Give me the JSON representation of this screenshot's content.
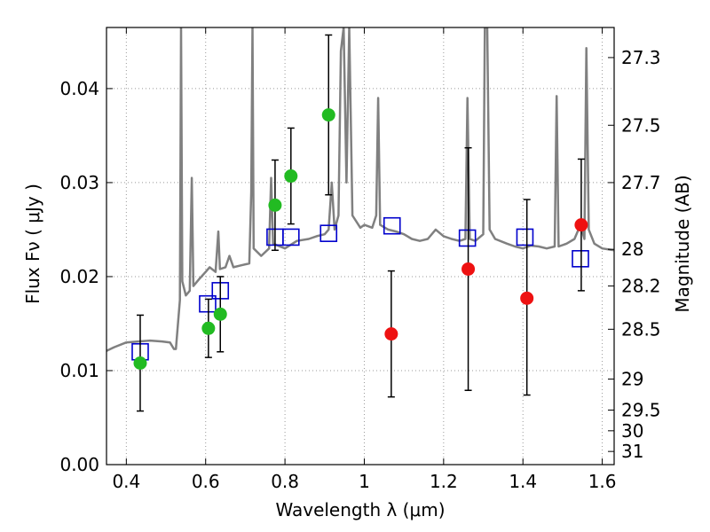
{
  "chart_data": {
    "type": "scatter",
    "xlabel": "Wavelength  λ (μm)",
    "ylabel": "Flux  Fν  ( μJy )",
    "y2label": "Magnitude (AB)",
    "xlim": [
      0.35,
      1.63
    ],
    "ylim": [
      0.0,
      0.0465
    ],
    "grid": true,
    "xticks": [
      0.4,
      0.6,
      0.8,
      1.0,
      1.2,
      1.4,
      1.6
    ],
    "xtick_labels": [
      "0.4",
      "0.6",
      "0.8",
      "1",
      "1.2",
      "1.4",
      "1.6"
    ],
    "yticks": [
      0.0,
      0.01,
      0.02,
      0.03,
      0.04
    ],
    "ytick_labels": [
      "0.00",
      "0.01",
      "0.02",
      "0.03",
      "0.04"
    ],
    "y2ticks": [
      {
        "label": "27.3",
        "flux": 0.0433
      },
      {
        "label": "27.5",
        "flux": 0.0361
      },
      {
        "label": "27.7",
        "flux": 0.03
      },
      {
        "label": "28",
        "flux": 0.0229
      },
      {
        "label": "28.2",
        "flux": 0.019
      },
      {
        "label": "28.5",
        "flux": 0.0144
      },
      {
        "label": "29",
        "flux": 0.0091
      },
      {
        "label": "29.5",
        "flux": 0.0058
      },
      {
        "label": "30",
        "flux": 0.0036
      },
      {
        "label": "31",
        "flux": 0.0014
      }
    ],
    "colors": {
      "spectrum": "#808080",
      "model": "#0000cc",
      "detected": "#22bb22",
      "upper": "#ee1111",
      "errorbar": "#000000",
      "grid": "#999999"
    },
    "series": [
      {
        "style": "line",
        "points": [
          [
            0.35,
            0.0121
          ],
          [
            0.37,
            0.0125
          ],
          [
            0.4,
            0.013
          ],
          [
            0.43,
            0.0131
          ],
          [
            0.46,
            0.0132
          ],
          [
            0.49,
            0.0131
          ],
          [
            0.51,
            0.013
          ],
          [
            0.52,
            0.0123
          ],
          [
            0.525,
            0.0123
          ],
          [
            0.535,
            0.0175
          ],
          [
            0.538,
            0.0465
          ],
          [
            0.541,
            0.0195
          ],
          [
            0.55,
            0.018
          ],
          [
            0.56,
            0.0185
          ],
          [
            0.565,
            0.0305
          ],
          [
            0.569,
            0.019
          ],
          [
            0.585,
            0.0198
          ],
          [
            0.6,
            0.0205
          ],
          [
            0.61,
            0.021
          ],
          [
            0.625,
            0.0205
          ],
          [
            0.632,
            0.0248
          ],
          [
            0.636,
            0.0208
          ],
          [
            0.65,
            0.021
          ],
          [
            0.66,
            0.0222
          ],
          [
            0.67,
            0.021
          ],
          [
            0.69,
            0.0212
          ],
          [
            0.71,
            0.0214
          ],
          [
            0.715,
            0.029
          ],
          [
            0.718,
            0.0465
          ],
          [
            0.721,
            0.023
          ],
          [
            0.74,
            0.0222
          ],
          [
            0.76,
            0.023
          ],
          [
            0.765,
            0.0305
          ],
          [
            0.77,
            0.0235
          ],
          [
            0.8,
            0.023
          ],
          [
            0.83,
            0.0238
          ],
          [
            0.86,
            0.024
          ],
          [
            0.88,
            0.0243
          ],
          [
            0.9,
            0.0245
          ],
          [
            0.91,
            0.025
          ],
          [
            0.918,
            0.03
          ],
          [
            0.925,
            0.025
          ],
          [
            0.935,
            0.0265
          ],
          [
            0.941,
            0.044
          ],
          [
            0.948,
            0.0465
          ],
          [
            0.955,
            0.03
          ],
          [
            0.962,
            0.0465
          ],
          [
            0.97,
            0.0265
          ],
          [
            0.99,
            0.0252
          ],
          [
            1.0,
            0.0255
          ],
          [
            1.02,
            0.0252
          ],
          [
            1.03,
            0.0265
          ],
          [
            1.035,
            0.039
          ],
          [
            1.04,
            0.0255
          ],
          [
            1.06,
            0.025
          ],
          [
            1.08,
            0.0248
          ],
          [
            1.1,
            0.0245
          ],
          [
            1.12,
            0.024
          ],
          [
            1.14,
            0.0238
          ],
          [
            1.16,
            0.024
          ],
          [
            1.18,
            0.025
          ],
          [
            1.2,
            0.0243
          ],
          [
            1.22,
            0.024
          ],
          [
            1.24,
            0.0238
          ],
          [
            1.255,
            0.024
          ],
          [
            1.26,
            0.039
          ],
          [
            1.266,
            0.024
          ],
          [
            1.28,
            0.0238
          ],
          [
            1.3,
            0.0245
          ],
          [
            1.304,
            0.0465
          ],
          [
            1.31,
            0.0465
          ],
          [
            1.316,
            0.025
          ],
          [
            1.33,
            0.024
          ],
          [
            1.36,
            0.0235
          ],
          [
            1.38,
            0.0232
          ],
          [
            1.4,
            0.023
          ],
          [
            1.42,
            0.0233
          ],
          [
            1.44,
            0.0232
          ],
          [
            1.46,
            0.023
          ],
          [
            1.48,
            0.0232
          ],
          [
            1.485,
            0.0392
          ],
          [
            1.49,
            0.0232
          ],
          [
            1.51,
            0.0235
          ],
          [
            1.53,
            0.024
          ],
          [
            1.545,
            0.0255
          ],
          [
            1.555,
            0.024
          ],
          [
            1.56,
            0.0443
          ],
          [
            1.566,
            0.025
          ],
          [
            1.58,
            0.0235
          ],
          [
            1.6,
            0.023
          ],
          [
            1.63,
            0.0228
          ]
        ]
      },
      {
        "style": "open-square",
        "x": [
          0.435,
          0.605,
          0.637,
          0.775,
          0.815,
          0.91,
          1.07,
          1.26,
          1.405,
          1.545
        ],
        "y": [
          0.012,
          0.0171,
          0.0185,
          0.0242,
          0.0242,
          0.0246,
          0.0254,
          0.0241,
          0.0242,
          0.0219
        ]
      },
      {
        "style": "filled-circle",
        "color_key": "detected",
        "x": [
          0.435,
          0.607,
          0.637,
          0.775,
          0.815,
          0.91
        ],
        "y": [
          0.0108,
          0.0145,
          0.016,
          0.0276,
          0.0307,
          0.0372
        ],
        "yerr_low": [
          0.0051,
          0.0031,
          0.004,
          0.0048,
          0.0051,
          0.0085
        ],
        "yerr_high": [
          0.0051,
          0.0031,
          0.004,
          0.0048,
          0.0051,
          0.0085
        ]
      },
      {
        "style": "filled-circle",
        "color_key": "upper",
        "x": [
          1.068,
          1.262,
          1.41,
          1.547
        ],
        "y": [
          0.0139,
          0.0208,
          0.0177,
          0.0255
        ],
        "yerr_low": [
          0.0067,
          0.0129,
          0.0103,
          0.007
        ],
        "yerr_high": [
          0.0067,
          0.0129,
          0.0105,
          0.007
        ]
      }
    ]
  }
}
